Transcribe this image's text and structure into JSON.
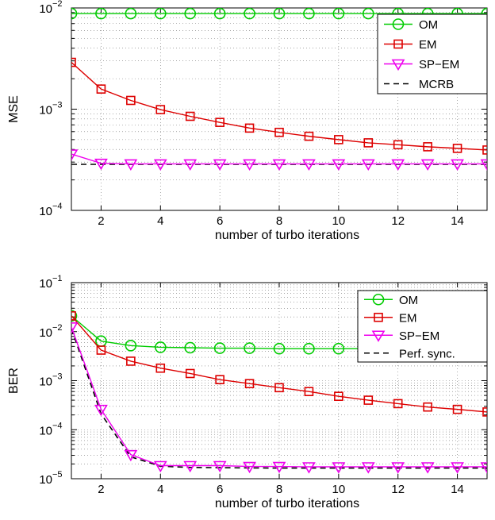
{
  "chart_data": [
    {
      "type": "line",
      "yscale": "log",
      "xlabel": "number of turbo iterations",
      "ylabel": "MSE",
      "xlim": [
        1,
        15
      ],
      "ylim": [
        0.0001,
        0.01
      ],
      "xticks": [
        2,
        4,
        6,
        8,
        10,
        12,
        14
      ],
      "xtick_labels": [
        "2",
        "4",
        "6",
        "8",
        "10",
        "12",
        "14"
      ],
      "yticks": [
        0.0001,
        0.001,
        0.01
      ],
      "ytick_labels": [
        {
          "base": "10",
          "exp": "−4"
        },
        {
          "base": "10",
          "exp": "−3"
        },
        {
          "base": "10",
          "exp": "−2"
        }
      ],
      "grid": true,
      "legend_position": "top-right",
      "x": [
        1,
        2,
        3,
        4,
        5,
        6,
        7,
        8,
        9,
        10,
        11,
        12,
        13,
        14,
        15
      ],
      "series": [
        {
          "name": "OM",
          "color": "#00cc00",
          "marker": "circle",
          "values": [
            0.0088,
            0.0088,
            0.0088,
            0.0088,
            0.0088,
            0.0088,
            0.0088,
            0.0088,
            0.0088,
            0.0088,
            0.0088,
            0.0088,
            0.0088,
            0.0088,
            0.0088
          ]
        },
        {
          "name": "EM",
          "color": "#dd0000",
          "marker": "square",
          "values": [
            0.0029,
            0.00158,
            0.00122,
            0.00099,
            0.00085,
            0.00074,
            0.00065,
            0.00059,
            0.00054,
            0.0005,
            0.000465,
            0.000445,
            0.000425,
            0.00041,
            0.000395
          ]
        },
        {
          "name": "SP−EM",
          "color": "#ee00ee",
          "marker": "triangle-down",
          "values": [
            0.00036,
            0.000292,
            0.000288,
            0.000288,
            0.000288,
            0.000288,
            0.000288,
            0.000288,
            0.000288,
            0.000288,
            0.000288,
            0.000288,
            0.000288,
            0.000288,
            0.000288
          ]
        },
        {
          "name": "MCRB",
          "color": "#000000",
          "marker": "none",
          "dash": true,
          "values": [
            0.000285,
            0.000285,
            0.000285,
            0.000285,
            0.000285,
            0.000285,
            0.000285,
            0.000285,
            0.000285,
            0.000285,
            0.000285,
            0.000285,
            0.000285,
            0.000285,
            0.000285
          ]
        }
      ]
    },
    {
      "type": "line",
      "yscale": "log",
      "xlabel": "number of turbo iterations",
      "ylabel": "BER",
      "xlim": [
        1,
        15
      ],
      "ylim": [
        1e-05,
        0.1
      ],
      "xticks": [
        2,
        4,
        6,
        8,
        10,
        12,
        14
      ],
      "xtick_labels": [
        "2",
        "4",
        "6",
        "8",
        "10",
        "12",
        "14"
      ],
      "yticks": [
        1e-05,
        0.0001,
        0.001,
        0.01,
        0.1
      ],
      "ytick_labels": [
        {
          "base": "10",
          "exp": "−5"
        },
        {
          "base": "10",
          "exp": "−4"
        },
        {
          "base": "10",
          "exp": "−3"
        },
        {
          "base": "10",
          "exp": "−2"
        },
        {
          "base": "10",
          "exp": "−1"
        }
      ],
      "grid": true,
      "legend_position": "top-right",
      "x": [
        1,
        2,
        3,
        4,
        5,
        6,
        7,
        8,
        9,
        10,
        11,
        12,
        13,
        14,
        15
      ],
      "series": [
        {
          "name": "OM",
          "color": "#00cc00",
          "marker": "circle",
          "values": [
            0.021,
            0.0064,
            0.0052,
            0.0048,
            0.0047,
            0.0046,
            0.0046,
            0.0045,
            0.0045,
            0.0045,
            0.0045,
            0.0045,
            0.0045,
            0.0045,
            0.0045
          ]
        },
        {
          "name": "EM",
          "color": "#dd0000",
          "marker": "square",
          "values": [
            0.021,
            0.0042,
            0.0025,
            0.0018,
            0.0014,
            0.00105,
            0.00087,
            0.00072,
            0.0006,
            0.00048,
            0.0004,
            0.00034,
            0.00029,
            0.00026,
            0.00023
          ]
        },
        {
          "name": "SP−EM",
          "color": "#ee00ee",
          "marker": "triangle-down",
          "values": [
            0.0125,
            0.00026,
            3.1e-05,
            1.85e-05,
            1.85e-05,
            1.85e-05,
            1.78e-05,
            1.78e-05,
            1.75e-05,
            1.75e-05,
            1.75e-05,
            1.75e-05,
            1.75e-05,
            1.75e-05,
            1.75e-05
          ]
        },
        {
          "name": "Perf. sync.",
          "color": "#000000",
          "marker": "none",
          "dash": true,
          "values": [
            0.0115,
            0.00021,
            2.8e-05,
            1.8e-05,
            1.7e-05,
            1.68e-05,
            1.66e-05,
            1.65e-05,
            1.65e-05,
            1.65e-05,
            1.65e-05,
            1.65e-05,
            1.65e-05,
            1.65e-05,
            1.65e-05
          ]
        }
      ]
    }
  ]
}
